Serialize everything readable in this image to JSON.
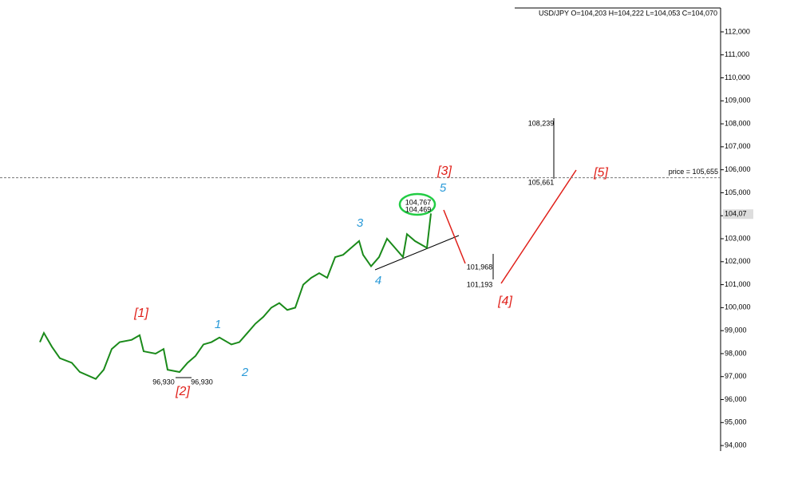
{
  "chart_data": {
    "type": "line",
    "title": "USD/JPY O=104,203 H=104,222 L=104,053 C=104,070",
    "series": [
      {
        "name": "USD/JPY",
        "color": "#1a8a1a",
        "x": [
          10,
          11,
          13,
          15,
          18,
          20,
          24,
          26,
          28,
          30,
          33,
          35,
          36,
          39,
          41,
          42,
          45,
          47,
          49,
          51,
          53,
          55,
          58,
          60,
          62,
          64,
          66,
          68,
          70,
          72,
          74,
          76,
          78,
          80,
          82,
          84,
          86,
          88,
          90,
          91,
          93,
          95,
          97,
          99,
          101,
          102,
          104,
          106,
          107,
          108
        ],
        "values": [
          98.5,
          98.9,
          98.3,
          97.8,
          97.6,
          97.2,
          96.9,
          97.3,
          98.2,
          98.5,
          98.6,
          98.8,
          98.1,
          98.0,
          98.2,
          97.3,
          97.2,
          97.6,
          97.9,
          98.4,
          98.5,
          98.7,
          98.4,
          98.5,
          98.9,
          99.3,
          99.6,
          100.0,
          100.2,
          99.9,
          100.0,
          101.0,
          101.3,
          101.5,
          101.3,
          102.2,
          102.3,
          102.6,
          102.9,
          102.3,
          101.8,
          102.2,
          103.0,
          102.6,
          102.2,
          103.2,
          102.9,
          102.7,
          102.6,
          104.1
        ]
      }
    ],
    "xlim": [
      0,
      180
    ],
    "ylim": [
      93.76,
      113.04
    ],
    "yticks": [
      {
        "value": 94,
        "label": "94,000"
      },
      {
        "value": 95,
        "label": "95,000"
      },
      {
        "value": 96,
        "label": "96,000"
      },
      {
        "value": 97,
        "label": "97,000"
      },
      {
        "value": 98,
        "label": "98,000"
      },
      {
        "value": 99,
        "label": "99,000"
      },
      {
        "value": 100,
        "label": "100,000"
      },
      {
        "value": 101,
        "label": "101,000"
      },
      {
        "value": 102,
        "label": "102,000"
      },
      {
        "value": 103,
        "label": "103,000"
      },
      {
        "value": 104,
        "label": "104,000"
      },
      {
        "value": 105,
        "label": "105,000"
      },
      {
        "value": 106,
        "label": "106,000"
      },
      {
        "value": 107,
        "label": "107,000"
      },
      {
        "value": 108,
        "label": "108,000"
      },
      {
        "value": 109,
        "label": "109,000"
      },
      {
        "value": 110,
        "label": "110,000"
      },
      {
        "value": 111,
        "label": "111,000"
      },
      {
        "value": 112,
        "label": "112,000"
      }
    ],
    "last_price": {
      "value": 104.07,
      "label": "104,07"
    },
    "price_line": {
      "value": 105.655,
      "label": "price = 105,655"
    },
    "annotations": [
      "[1]",
      "[2]",
      "[3]",
      "[4]",
      "[5]",
      "1",
      "2",
      "3",
      "4",
      "5",
      "96,930",
      "96,930",
      "104,767",
      "104,469",
      "108,239",
      "105,661",
      "101,968",
      "101,193"
    ]
  }
}
